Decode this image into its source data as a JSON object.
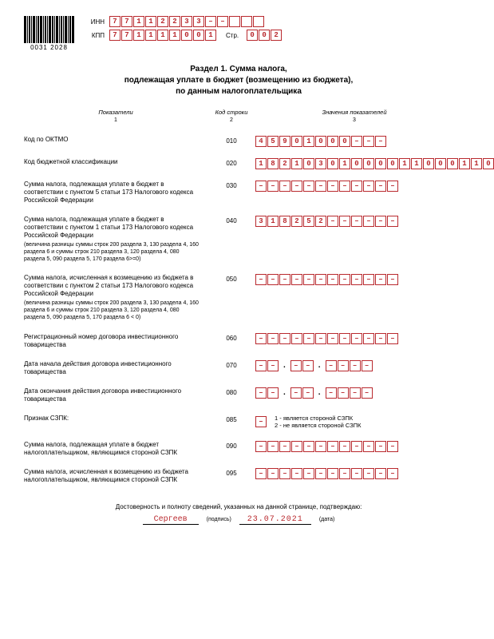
{
  "barcode_number": "0031 2028",
  "inn_label": "ИНН",
  "kpp_label": "КПП",
  "str_label": "Стр.",
  "inn": [
    "7",
    "7",
    "1",
    "1",
    "2",
    "2",
    "3",
    "3",
    "–",
    "–",
    "",
    "",
    ""
  ],
  "kpp": [
    "7",
    "7",
    "1",
    "1",
    "1",
    "1",
    "0",
    "0",
    "1"
  ],
  "page": [
    "0",
    "0",
    "2"
  ],
  "title_l1": "Раздел 1. Сумма налога,",
  "title_l2": "подлежащая уплате в бюджет (возмещению из бюджета),",
  "title_l3": "по данным налогоплательщика",
  "head_c1": "Показатели",
  "head_c2": "Код строки",
  "head_c3": "Значения показателей",
  "num_c1": "1",
  "num_c2": "2",
  "num_c3": "3",
  "rows": {
    "r010": {
      "label": "Код по ОКТМО",
      "code": "010",
      "cells": [
        "4",
        "5",
        "9",
        "0",
        "1",
        "0",
        "0",
        "0",
        "–",
        "–",
        "–"
      ]
    },
    "r020": {
      "label": "Код бюджетной классификации",
      "code": "020",
      "cells": [
        "1",
        "8",
        "2",
        "1",
        "0",
        "3",
        "0",
        "1",
        "0",
        "0",
        "0",
        "0",
        "1",
        "1",
        "0",
        "0",
        "0",
        "1",
        "1",
        "0"
      ]
    },
    "r030": {
      "label": "Сумма налога, подлежащая уплате в бюджет в соответствии с пунктом 5 статьи 173 Налогового кодекса Российской Федерации",
      "code": "030",
      "cells": [
        "–",
        "–",
        "–",
        "–",
        "–",
        "–",
        "–",
        "–",
        "–",
        "–",
        "–",
        "–"
      ]
    },
    "r040": {
      "label": "Сумма налога, подлежащая уплате в бюджет в соответствии с пунктом 1 статьи 173 Налогового кодекса Российской Федерации",
      "note": "(величина разницы суммы строк 200 раздела 3, 130 раздела 4, 160 раздела 6 и суммы строк 210 раздела 3, 120 раздела 4, 080 раздела 5, 090 раздела 5, 170 раздела 6>=0)",
      "code": "040",
      "cells": [
        "3",
        "1",
        "8",
        "2",
        "5",
        "2",
        "–",
        "–",
        "–",
        "–",
        "–",
        "–"
      ]
    },
    "r050": {
      "label": "Сумма налога, исчисленная к возмещению из бюджета в соответствии с пунктом 2 статьи 173 Налогового кодекса Российской Федерации",
      "note": "(величина разницы суммы строк 200 раздела 3, 130 раздела 4, 160 раздела 6 и суммы строк 210 раздела 3, 120 раздела 4, 080 раздела 5, 090 раздела 5, 170 раздела 6 < 0)",
      "code": "050",
      "cells": [
        "–",
        "–",
        "–",
        "–",
        "–",
        "–",
        "–",
        "–",
        "–",
        "–",
        "–",
        "–"
      ]
    },
    "r060": {
      "label": "Регистрационный номер договора инвестиционного товарищества",
      "code": "060",
      "cells": [
        "–",
        "–",
        "–",
        "–",
        "–",
        "–",
        "–",
        "–",
        "–",
        "–",
        "–",
        "–"
      ]
    },
    "r070": {
      "label": "Дата начала действия договора инвестиционного товарищества",
      "code": "070",
      "d": [
        "–",
        "–"
      ],
      "m": [
        "–",
        "–"
      ],
      "y": [
        "–",
        "–",
        "–",
        "–"
      ]
    },
    "r080": {
      "label": "Дата окончания действия договора инвестиционного товарищества",
      "code": "080",
      "d": [
        "–",
        "–"
      ],
      "m": [
        "–",
        "–"
      ],
      "y": [
        "–",
        "–",
        "–",
        "–"
      ]
    },
    "r085": {
      "label": "Признак СЗПК:",
      "code": "085",
      "cells": [
        "–"
      ],
      "legend1": "1 - является стороной СЗПК",
      "legend2": "2 - не является стороной СЗПК"
    },
    "r090": {
      "label": "Сумма налога, подлежащая уплате в бюджет налогоплательщиком, являющимся стороной СЗПК",
      "code": "090",
      "cells": [
        "–",
        "–",
        "–",
        "–",
        "–",
        "–",
        "–",
        "–",
        "–",
        "–",
        "–",
        "–"
      ]
    },
    "r095": {
      "label": "Сумма налога, исчисленная к возмещению из бюджета налогоплательщиком, являющимся стороной СЗПК",
      "code": "095",
      "cells": [
        "–",
        "–",
        "–",
        "–",
        "–",
        "–",
        "–",
        "–",
        "–",
        "–",
        "–",
        "–"
      ]
    }
  },
  "footer_text": "Достоверность и полноту сведений, указанных на данной странице, подтверждаю:",
  "signature": "Сергеев",
  "sig_cap": "(подпись)",
  "date": "23.07.2021",
  "date_cap": "(дата)",
  "colors": {
    "accent": "#b9292e"
  }
}
